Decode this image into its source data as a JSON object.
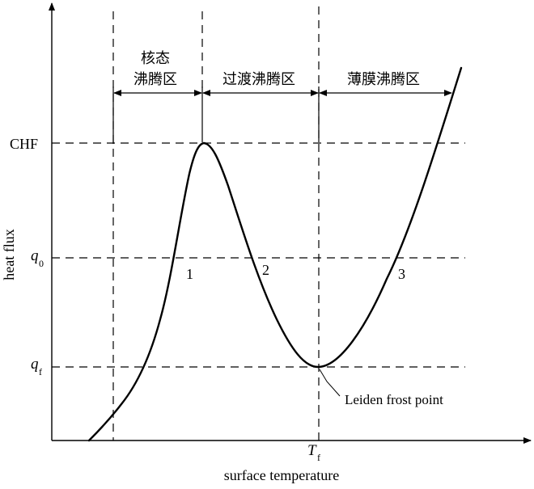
{
  "axes": {
    "x_label": "surface temperature",
    "y_label": "heat flux"
  },
  "y_ticks": {
    "chf": "CHF",
    "q0_main": "q",
    "q0_sub": "0",
    "qf_main": "q",
    "qf_sub": "f"
  },
  "x_ticks": {
    "tf_main": "T",
    "tf_sub": "f"
  },
  "regions": {
    "nucleate_line1": "核态",
    "nucleate_line2": "沸腾区",
    "transition": "过渡沸腾区",
    "film": "薄膜沸腾区"
  },
  "points": {
    "p1": "1",
    "p2": "2",
    "p3": "3"
  },
  "annotation": {
    "leidenfrost": "Leiden frost point"
  },
  "colors": {
    "ink": "#000000",
    "background": "#ffffff"
  }
}
